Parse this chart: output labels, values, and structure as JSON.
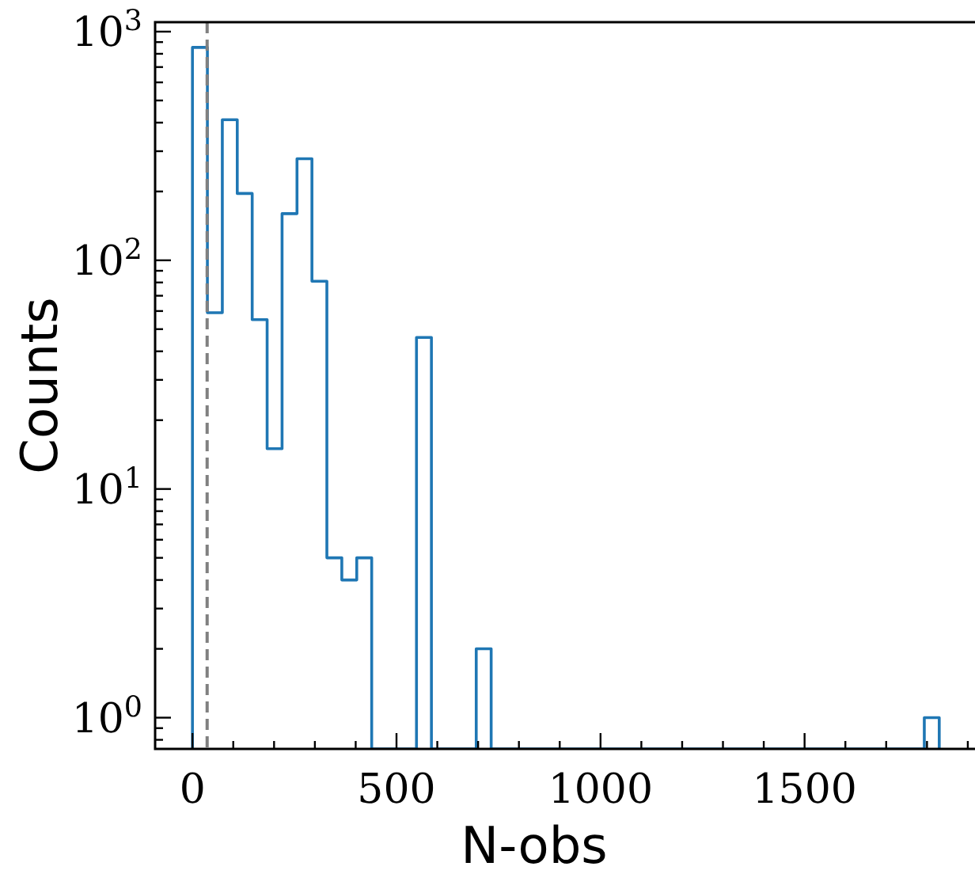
{
  "chart_data": {
    "type": "histogram",
    "xlabel": "N-obs",
    "ylabel": "Counts",
    "color": "#1f77b4",
    "log": "y",
    "grid": false,
    "bins": [
      0,
      36.6,
      73.2,
      109.8,
      146.4,
      183,
      219.6,
      256.2,
      292.8,
      329.4,
      366,
      402.6,
      439.2,
      475.8,
      512.4,
      549,
      585.6,
      622.2,
      658.8,
      695.4,
      732,
      768.6,
      805.2,
      841.8,
      878.4,
      915,
      951.6,
      988.2,
      1024.8,
      1061.4,
      1098,
      1134.6,
      1171.2,
      1207.8,
      1244.4,
      1281,
      1317.6,
      1354.2,
      1390.8,
      1427.4,
      1464,
      1500.6,
      1537.2,
      1573.8,
      1610.4,
      1647,
      1683.6,
      1720.2,
      1756.8,
      1793.4,
      1830
    ],
    "values": [
      853,
      59,
      412,
      196,
      55,
      15,
      160,
      278,
      81,
      5,
      4,
      5,
      null,
      null,
      null,
      46,
      null,
      null,
      null,
      2,
      null,
      null,
      null,
      null,
      null,
      null,
      null,
      null,
      null,
      null,
      null,
      null,
      null,
      null,
      null,
      null,
      null,
      null,
      null,
      null,
      null,
      null,
      null,
      null,
      null,
      null,
      null,
      null,
      null,
      1
    ],
    "xlim": [
      -91.5,
      1921.5
    ],
    "ylim": [
      0.73,
      1100
    ],
    "xticks": [
      0,
      {
        "value": 100,
        "label": null
      },
      {
        "value": 200,
        "label": null
      },
      {
        "value": 300,
        "label": null
      },
      {
        "value": 400,
        "label": null
      },
      500,
      {
        "value": 600,
        "label": null
      },
      {
        "value": 700,
        "label": null
      },
      {
        "value": 800,
        "label": null
      },
      {
        "value": 900,
        "label": null
      },
      1000,
      {
        "value": 1100,
        "label": null
      },
      {
        "value": 1200,
        "label": null
      },
      {
        "value": 1300,
        "label": null
      },
      {
        "value": 1400,
        "label": null
      },
      1500,
      {
        "value": 1600,
        "label": null
      },
      {
        "value": 1700,
        "label": null
      },
      {
        "value": 1800,
        "label": null
      },
      {
        "value": 1900,
        "label": null
      }
    ],
    "yticks": [
      {
        "value": 0.8,
        "label": null
      },
      {
        "value": 0.9,
        "label": null
      },
      {
        "value": 1,
        "label": "10$^{0}$"
      },
      {
        "value": 2,
        "label": null
      },
      {
        "value": 3,
        "label": null
      },
      {
        "value": 4,
        "label": null
      },
      {
        "value": 5,
        "label": null
      },
      {
        "value": 6,
        "label": null
      },
      {
        "value": 7,
        "label": null
      },
      {
        "value": 8,
        "label": null
      },
      {
        "value": 9,
        "label": null
      },
      {
        "value": 10,
        "label": "10$^{1}$"
      },
      {
        "value": 20,
        "label": null
      },
      {
        "value": 30,
        "label": null
      },
      {
        "value": 40,
        "label": null
      },
      {
        "value": 50,
        "label": null
      },
      {
        "value": 60,
        "label": null
      },
      {
        "value": 70,
        "label": null
      },
      {
        "value": 80,
        "label": null
      },
      {
        "value": 90,
        "label": null
      },
      {
        "value": 100,
        "label": "10$^{2}$"
      },
      {
        "value": 200,
        "label": null
      },
      {
        "value": 300,
        "label": null
      },
      {
        "value": 400,
        "label": null
      },
      {
        "value": 500,
        "label": null
      },
      {
        "value": 600,
        "label": null
      },
      {
        "value": 700,
        "label": null
      },
      {
        "value": 800,
        "label": null
      },
      {
        "value": 900,
        "label": null
      },
      {
        "value": 1000,
        "label": "10$^{3}$"
      }
    ],
    "ref_lines": [
      {
        "axis": "x",
        "value": 36,
        "color": "#808080",
        "line_style": "dashed"
      }
    ]
  }
}
